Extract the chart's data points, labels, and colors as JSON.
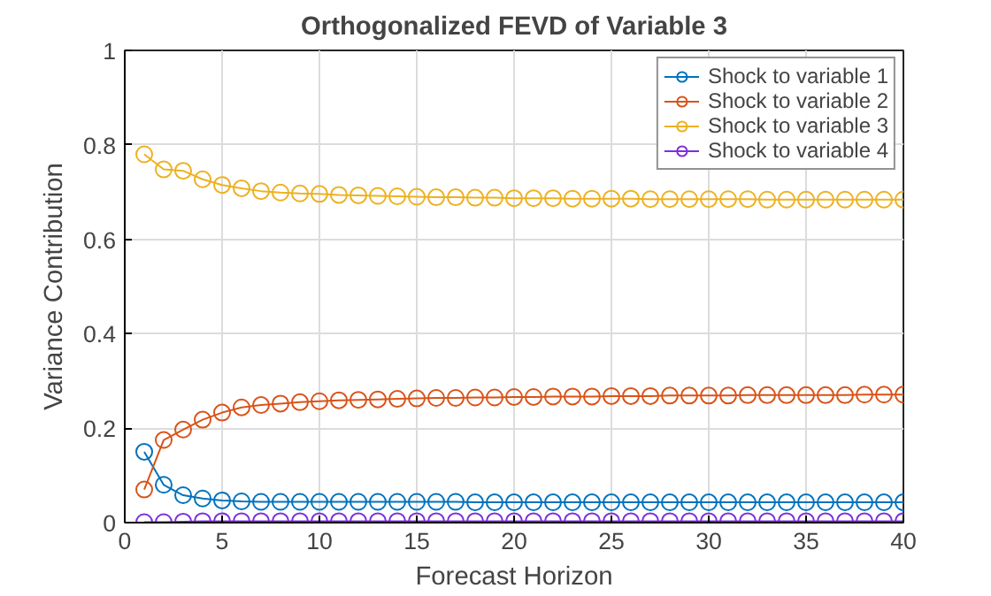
{
  "chart_data": {
    "type": "line",
    "title": "Orthogonalized FEVD of Variable 3",
    "xlabel": "Forecast Horizon",
    "ylabel": "Variance Contribution",
    "x": [
      1,
      2,
      3,
      4,
      5,
      6,
      7,
      8,
      9,
      10,
      11,
      12,
      13,
      14,
      15,
      16,
      17,
      18,
      19,
      20,
      21,
      22,
      23,
      24,
      25,
      26,
      27,
      28,
      29,
      30,
      31,
      32,
      33,
      34,
      35,
      36,
      37,
      38,
      39,
      40
    ],
    "xlim": [
      0,
      40
    ],
    "ylim": [
      0,
      1
    ],
    "xticks": [
      0,
      5,
      10,
      15,
      20,
      25,
      30,
      35,
      40
    ],
    "yticks": [
      0,
      0.2,
      0.4,
      0.6,
      0.8,
      1
    ],
    "grid": true,
    "legend": "top right",
    "marker": "circle",
    "line_style": "solid",
    "series": [
      {
        "name": "Shock to variable 1",
        "color": "#0072bd",
        "values": [
          0.15,
          0.08,
          0.058,
          0.051,
          0.047,
          0.045,
          0.044,
          0.044,
          0.044,
          0.044,
          0.044,
          0.044,
          0.044,
          0.044,
          0.044,
          0.044,
          0.044,
          0.043,
          0.043,
          0.043,
          0.043,
          0.043,
          0.043,
          0.043,
          0.043,
          0.043,
          0.043,
          0.043,
          0.043,
          0.043,
          0.043,
          0.043,
          0.043,
          0.043,
          0.043,
          0.043,
          0.043,
          0.043,
          0.043,
          0.043
        ]
      },
      {
        "name": "Shock to variable 2",
        "color": "#d95319",
        "values": [
          0.07,
          0.175,
          0.197,
          0.218,
          0.233,
          0.244,
          0.249,
          0.252,
          0.255,
          0.257,
          0.259,
          0.26,
          0.261,
          0.262,
          0.263,
          0.264,
          0.264,
          0.265,
          0.265,
          0.266,
          0.266,
          0.267,
          0.267,
          0.267,
          0.268,
          0.268,
          0.268,
          0.269,
          0.269,
          0.269,
          0.269,
          0.27,
          0.27,
          0.27,
          0.27,
          0.27,
          0.27,
          0.271,
          0.271,
          0.271
        ]
      },
      {
        "name": "Shock to variable 3",
        "color": "#edb120",
        "values": [
          0.78,
          0.748,
          0.745,
          0.727,
          0.715,
          0.708,
          0.702,
          0.699,
          0.697,
          0.696,
          0.694,
          0.693,
          0.692,
          0.691,
          0.69,
          0.689,
          0.689,
          0.688,
          0.688,
          0.687,
          0.687,
          0.687,
          0.686,
          0.686,
          0.686,
          0.686,
          0.685,
          0.685,
          0.685,
          0.685,
          0.685,
          0.685,
          0.684,
          0.684,
          0.684,
          0.684,
          0.684,
          0.684,
          0.684,
          0.684
        ]
      },
      {
        "name": "Shock to variable 4",
        "color": "#7e2fdb",
        "values": [
          0.001,
          0.001,
          0.002,
          0.003,
          0.003,
          0.003,
          0.003,
          0.003,
          0.003,
          0.003,
          0.003,
          0.003,
          0.003,
          0.003,
          0.003,
          0.003,
          0.003,
          0.003,
          0.003,
          0.003,
          0.003,
          0.003,
          0.003,
          0.003,
          0.003,
          0.003,
          0.003,
          0.003,
          0.003,
          0.003,
          0.003,
          0.003,
          0.003,
          0.003,
          0.003,
          0.003,
          0.003,
          0.003,
          0.003,
          0.003
        ]
      }
    ]
  }
}
